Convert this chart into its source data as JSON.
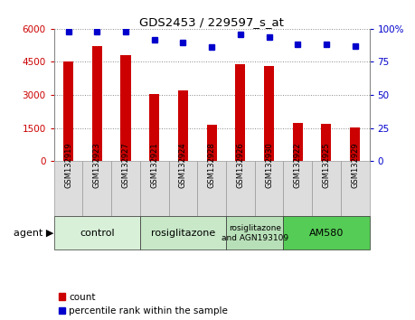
{
  "title": "GDS2453 / 229597_s_at",
  "samples": [
    "GSM132919",
    "GSM132923",
    "GSM132927",
    "GSM132921",
    "GSM132924",
    "GSM132928",
    "GSM132926",
    "GSM132930",
    "GSM132922",
    "GSM132925",
    "GSM132929"
  ],
  "counts": [
    4500,
    5200,
    4800,
    3050,
    3200,
    1650,
    4400,
    4300,
    1750,
    1700,
    1550
  ],
  "percentiles": [
    98,
    98,
    98,
    92,
    90,
    86,
    96,
    94,
    88,
    88,
    87
  ],
  "bar_color": "#cc0000",
  "dot_color": "#0000cc",
  "ylim_left": [
    0,
    6000
  ],
  "ylim_right": [
    0,
    100
  ],
  "yticks_left": [
    0,
    1500,
    3000,
    4500,
    6000
  ],
  "yticks_right": [
    0,
    25,
    50,
    75,
    100
  ],
  "groups": [
    {
      "label": "control",
      "indices": [
        0,
        1,
        2
      ],
      "color": "#d8f0d8",
      "text_size": 8
    },
    {
      "label": "rosiglitazone",
      "indices": [
        3,
        4,
        5
      ],
      "color": "#c8e8c8",
      "text_size": 8
    },
    {
      "label": "rosiglitazone\nand AGN193109",
      "indices": [
        6,
        7
      ],
      "color": "#b8e0b8",
      "text_size": 6.5
    },
    {
      "label": "AM580",
      "indices": [
        8,
        9,
        10
      ],
      "color": "#55cc55",
      "text_size": 8
    }
  ],
  "agent_label": "agent",
  "legend_count": "count",
  "legend_percentile": "percentile rank within the sample",
  "background_color": "#ffffff",
  "plot_bg": "#ffffff",
  "tick_color_left": "#cc0000",
  "tick_color_right": "#0000cc",
  "sample_box_color": "#dddddd",
  "grid_color": "#888888"
}
